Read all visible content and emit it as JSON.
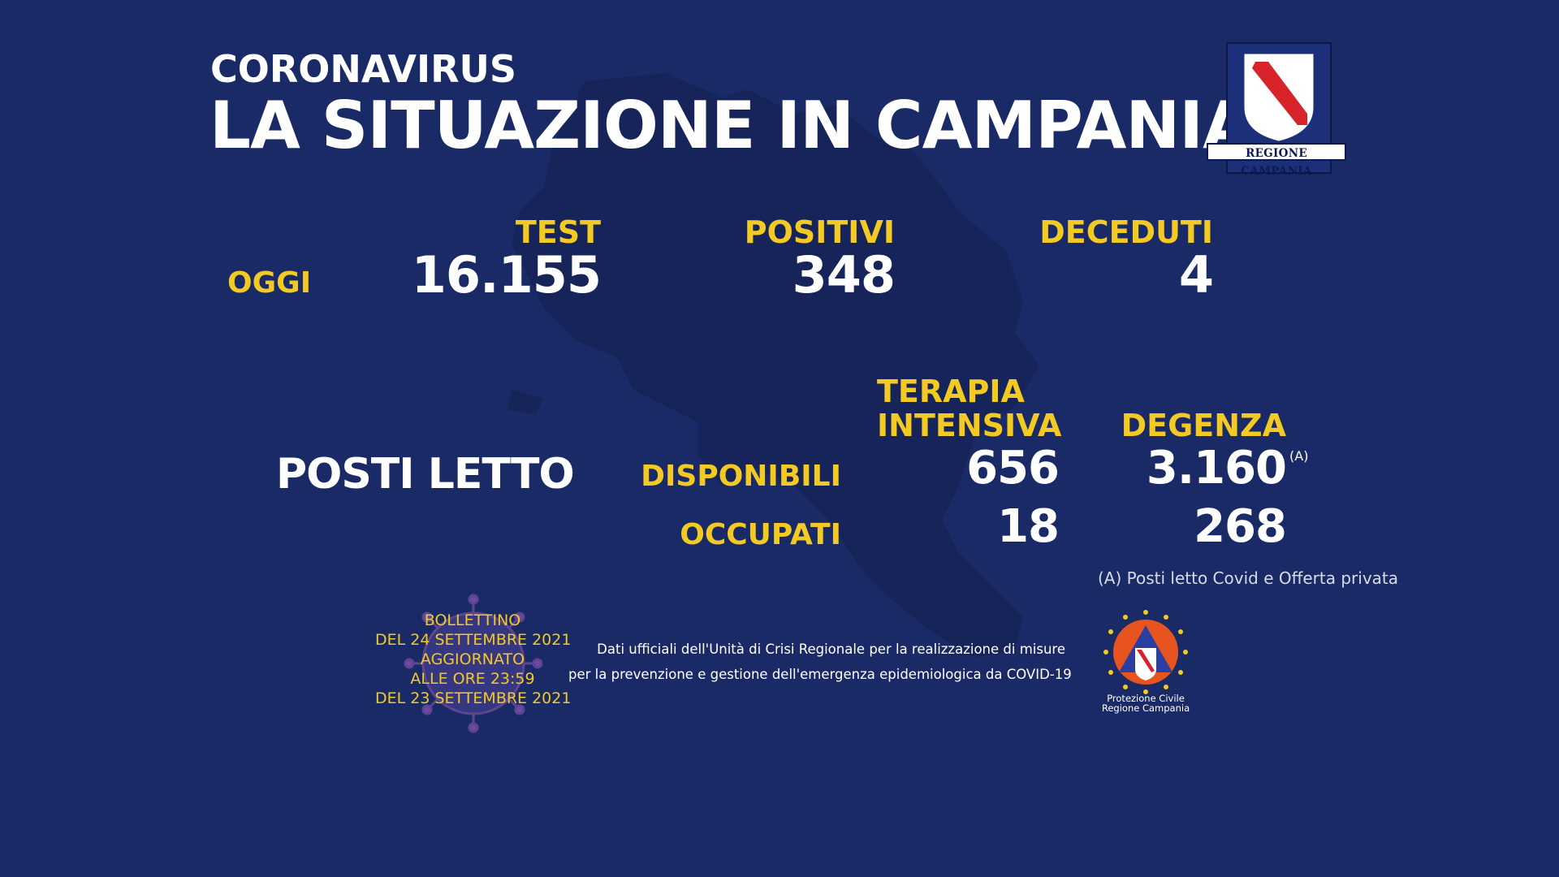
{
  "header": {
    "kicker": "CORONAVIRUS",
    "title": "LA SITUAZIONE IN CAMPANIA",
    "logo_text": "REGIONE CAMPANIA"
  },
  "today": {
    "row_label": "OGGI",
    "test_label": "TEST",
    "test_value": "16.155",
    "positivi_label": "POSITIVI",
    "positivi_value": "348",
    "deceduti_label": "DECEDUTI",
    "deceduti_value": "4"
  },
  "beds": {
    "section_label": "POSTI LETTO",
    "ti_label_line1": "TERAPIA",
    "ti_label_line2": "INTENSIVA",
    "degenza_label": "DEGENZA",
    "disponibili_label": "DISPONIBILI",
    "occupati_label": "OCCUPATI",
    "ti_disponibili": "656",
    "ti_occupati": "18",
    "degenza_disponibili": "3.160",
    "degenza_occupati": "268",
    "footnote_marker": "(A)",
    "footnote": "(A) Posti letto Covid e Offerta privata"
  },
  "bulletin": {
    "line1": "BOLLETTINO",
    "line2": "DEL 24 SETTEMBRE 2021",
    "line3": "AGGIORNATO",
    "line4": "ALLE ORE 23:59",
    "line5": "DEL 23 SETTEMBRE 2021"
  },
  "source": {
    "line1": "Dati ufficiali dell'Unità di Crisi Regionale per la realizzazione di misure",
    "line2": "per la prevenzione e gestione dell'emergenza epidemiologica da COVID-19"
  },
  "protezione_civile": {
    "line1": "Protezione Civile",
    "line2": "Regione Campania"
  },
  "colors": {
    "background": "#1a2a66",
    "accent_yellow": "#f3c923",
    "text_white": "#ffffff",
    "map_shade": "#16245a"
  }
}
